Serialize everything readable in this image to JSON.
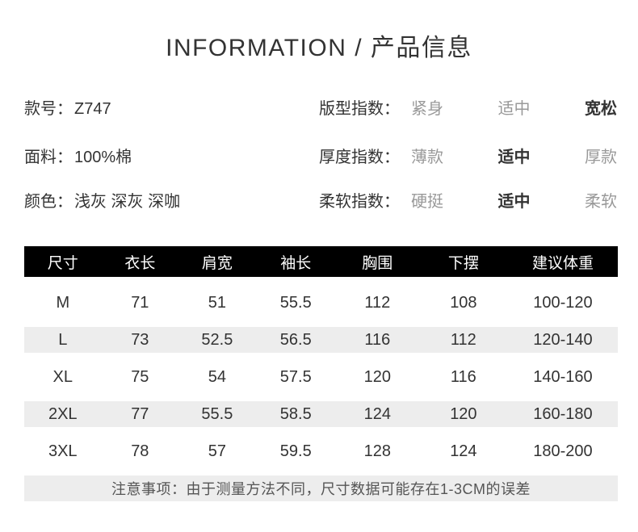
{
  "page": {
    "title": "INFORMATION / 产品信息"
  },
  "product": {
    "fields": [
      {
        "label": "款号：",
        "value": "Z747"
      },
      {
        "label": "面料：",
        "value": "100%棉"
      },
      {
        "label": "颜色：",
        "value": "浅灰 深灰 深咖"
      }
    ],
    "indices": [
      {
        "label": "版型指数：",
        "options": [
          "紧身",
          "适中",
          "宽松"
        ],
        "selected": "宽松"
      },
      {
        "label": "厚度指数：",
        "options": [
          "薄款",
          "适中",
          "厚款"
        ],
        "selected": "适中"
      },
      {
        "label": "柔软指数：",
        "options": [
          "硬挺",
          "适中",
          "柔软"
        ],
        "selected": "适中"
      }
    ]
  },
  "size_table": {
    "columns": [
      "尺寸",
      "衣长",
      "肩宽",
      "袖长",
      "胸围",
      "下摆",
      "建议体重"
    ],
    "rows": [
      [
        "M",
        "71",
        "51",
        "55.5",
        "112",
        "108",
        "100-120"
      ],
      [
        "L",
        "73",
        "52.5",
        "56.5",
        "116",
        "112",
        "120-140"
      ],
      [
        "XL",
        "75",
        "54",
        "57.5",
        "120",
        "116",
        "140-160"
      ],
      [
        "2XL",
        "77",
        "55.5",
        "58.5",
        "124",
        "120",
        "160-180"
      ],
      [
        "3XL",
        "78",
        "57",
        "59.5",
        "128",
        "124",
        "180-200"
      ]
    ],
    "note": "注意事项：由于测量方法不同，尺寸数据可能存在1-3CM的误差"
  },
  "palette": {
    "header_bg": "#000000",
    "header_text": "#ffffff",
    "stripe": "#ededed",
    "text": "#333333",
    "muted_option": "#999999",
    "note_text": "#555555",
    "background": "#ffffff"
  }
}
